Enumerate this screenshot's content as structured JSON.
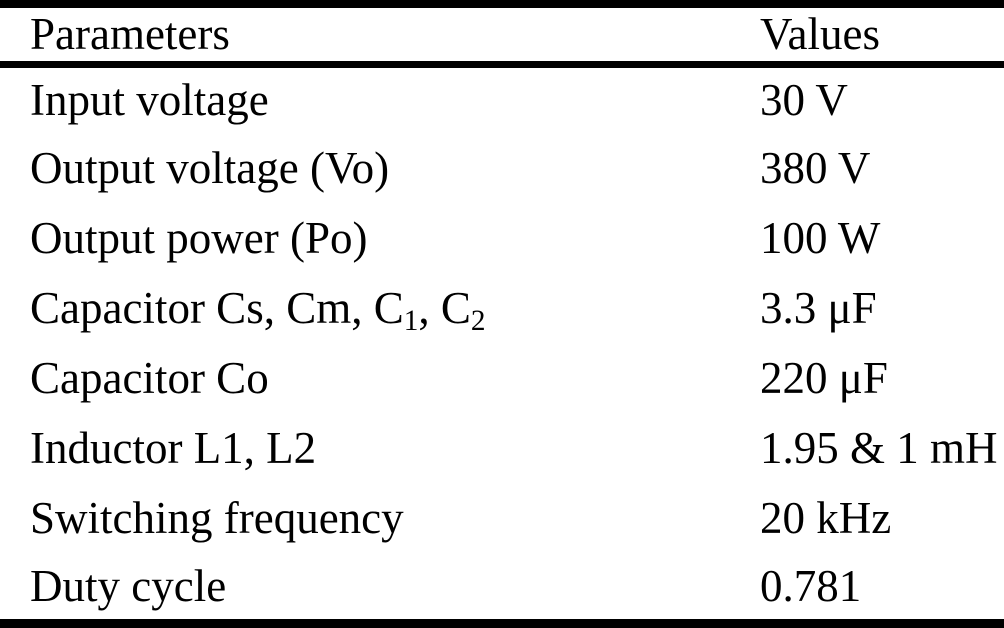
{
  "table": {
    "columns": [
      {
        "label": "Parameters"
      },
      {
        "label": "Values"
      }
    ],
    "rows": [
      {
        "param": [
          {
            "t": "Input voltage"
          }
        ],
        "value": "30 V"
      },
      {
        "param": [
          {
            "t": "Output voltage (Vo)"
          }
        ],
        "value": "380 V"
      },
      {
        "param": [
          {
            "t": "Output power (Po)"
          }
        ],
        "value": "100 W"
      },
      {
        "param": [
          {
            "t": "Capacitor Cs, Cm, C"
          },
          {
            "t": "1",
            "sub": true
          },
          {
            "t": ", C"
          },
          {
            "t": "2",
            "sub": true
          }
        ],
        "value": "3.3 μF"
      },
      {
        "param": [
          {
            "t": "Capacitor Co"
          }
        ],
        "value": "220 μF"
      },
      {
        "param": [
          {
            "t": "Inductor L1, L2"
          }
        ],
        "value": "1.95 & 1 mH"
      },
      {
        "param": [
          {
            "t": "Switching frequency"
          }
        ],
        "value": "20 kHz"
      },
      {
        "param": [
          {
            "t": "Duty cycle"
          }
        ],
        "value": "0.781"
      }
    ]
  },
  "colors": {
    "text": "#000000",
    "background": "#ffffff",
    "rule": "#000000"
  }
}
